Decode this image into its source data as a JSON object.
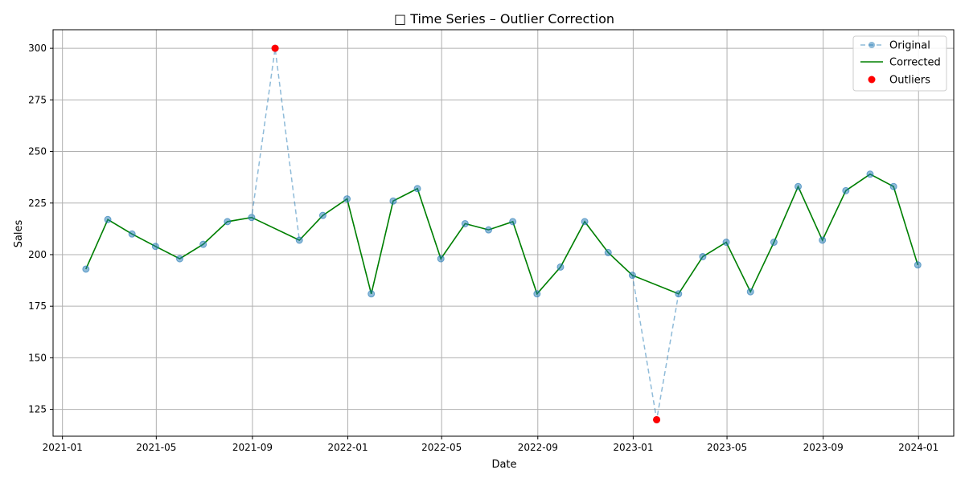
{
  "chart_data": {
    "type": "line",
    "title": "□ Time Series – Outlier Correction",
    "xlabel": "Date",
    "ylabel": "Sales",
    "ylim": [
      112,
      309
    ],
    "xlim": [
      "2020-12-20",
      "2024-02-15"
    ],
    "x_ticks": [
      "2021-01",
      "2021-05",
      "2021-09",
      "2022-01",
      "2022-05",
      "2022-09",
      "2023-01",
      "2023-05",
      "2023-09",
      "2024-01"
    ],
    "y_ticks": [
      125,
      150,
      175,
      200,
      225,
      250,
      275,
      300
    ],
    "grid": true,
    "legend_position": "top-right",
    "x": [
      "2021-01-31",
      "2021-02-28",
      "2021-03-31",
      "2021-04-30",
      "2021-05-31",
      "2021-06-30",
      "2021-07-31",
      "2021-08-31",
      "2021-09-30",
      "2021-10-31",
      "2021-11-30",
      "2021-12-31",
      "2022-01-31",
      "2022-02-28",
      "2022-03-31",
      "2022-04-30",
      "2022-05-31",
      "2022-06-30",
      "2022-07-31",
      "2022-08-31",
      "2022-09-30",
      "2022-10-31",
      "2022-11-30",
      "2022-12-31",
      "2023-01-31",
      "2023-02-28",
      "2023-03-31",
      "2023-04-30",
      "2023-05-31",
      "2023-06-30",
      "2023-07-31",
      "2023-08-31",
      "2023-09-30",
      "2023-10-31",
      "2023-11-30",
      "2023-12-31"
    ],
    "series": [
      {
        "name": "Original",
        "color": "#1f77b4",
        "style": "dashed-with-markers",
        "values": [
          193,
          217,
          210,
          204,
          198,
          205,
          216,
          218,
          300,
          207,
          219,
          227,
          181,
          226,
          232,
          198,
          215,
          212,
          216,
          181,
          194,
          216,
          201,
          190,
          120,
          181,
          199,
          206,
          182,
          206,
          233,
          207,
          231,
          239,
          233,
          195
        ]
      },
      {
        "name": "Corrected",
        "color": "#008000",
        "style": "solid",
        "values": [
          193,
          217,
          210,
          204,
          198,
          205,
          216,
          218,
          null,
          207,
          219,
          227,
          181,
          226,
          232,
          198,
          215,
          212,
          216,
          181,
          194,
          216,
          201,
          190,
          null,
          181,
          199,
          206,
          182,
          206,
          233,
          207,
          231,
          239,
          233,
          195
        ]
      },
      {
        "name": "Outliers",
        "color": "#ff0000",
        "style": "points",
        "points": [
          {
            "x": "2021-09-30",
            "y": 300
          },
          {
            "x": "2023-01-31",
            "y": 120
          }
        ]
      }
    ]
  }
}
